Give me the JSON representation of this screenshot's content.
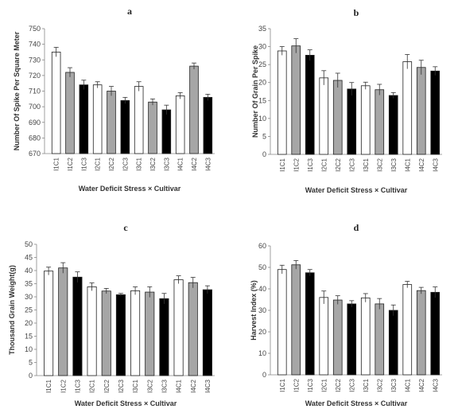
{
  "colors": {
    "C1": "#ffffff",
    "C2": "#a6a6a6",
    "C3": "#000000"
  },
  "chart_data": [
    {
      "type": "bar",
      "panel": "a",
      "title": "a",
      "xlabel": "Water Deficit Stress × Cultivar",
      "ylabel": "Number Of Spike Per Square Meter",
      "ylim": [
        670,
        750
      ],
      "yticks": [
        670,
        680,
        690,
        700,
        710,
        720,
        730,
        740,
        750
      ],
      "categories": [
        "I1C1",
        "I1C2",
        "I1C3",
        "I2C1",
        "I2C2",
        "I2C3",
        "I3C1",
        "I3C2",
        "I3C3",
        "I4C1",
        "I4C2",
        "I4C3"
      ],
      "values": [
        735,
        722,
        714,
        714,
        710,
        704,
        713,
        703,
        698,
        707,
        726,
        706
      ],
      "errors": [
        3,
        3,
        3,
        2,
        3,
        2,
        3,
        2,
        3,
        2,
        2,
        2
      ]
    },
    {
      "type": "bar",
      "panel": "b",
      "title": "b",
      "xlabel": "Water Deficit Stress × Cultivar",
      "ylabel": "Number Of Grain Per Spike",
      "ylim": [
        0,
        35
      ],
      "yticks": [
        0,
        5,
        10,
        15,
        20,
        25,
        30,
        35
      ],
      "categories": [
        "I1C1",
        "I1C2",
        "I1C3",
        "I2C1",
        "I2C2",
        "I2C3",
        "I3C1",
        "I3C2",
        "I3C3",
        "I4C1",
        "I4C2",
        "I4C3"
      ],
      "values": [
        28.8,
        30.2,
        27.6,
        21.3,
        20.6,
        18.2,
        19.1,
        18.0,
        16.4,
        25.8,
        24.2,
        23.2
      ],
      "errors": [
        1.2,
        2.0,
        1.5,
        2.0,
        2.0,
        1.8,
        1.0,
        1.5,
        0.8,
        2.0,
        2.0,
        1.2
      ]
    },
    {
      "type": "bar",
      "panel": "c",
      "title": "c",
      "xlabel": "Water Deficit Stress × Cultivar",
      "ylabel": "Thousand Grain Weight(g)",
      "ylim": [
        0,
        50
      ],
      "yticks": [
        0,
        5,
        10,
        15,
        20,
        25,
        30,
        35,
        40,
        45,
        50
      ],
      "categories": [
        "I1C1",
        "I1C2",
        "I1C3",
        "I2C1",
        "I2C2",
        "I2C3",
        "I3C1",
        "I3C2",
        "I3C3",
        "I4C1",
        "I4C2",
        "I4C3"
      ],
      "values": [
        39.8,
        41.0,
        37.5,
        33.8,
        32.2,
        30.8,
        32.3,
        31.8,
        29.3,
        36.5,
        35.4,
        32.7
      ],
      "errors": [
        1.5,
        2.0,
        2.0,
        1.5,
        1.0,
        0.5,
        1.5,
        2.0,
        2.0,
        1.5,
        2.0,
        1.5
      ]
    },
    {
      "type": "bar",
      "panel": "d",
      "title": "d",
      "xlabel": "Water Deficit Stress × Cultivar",
      "ylabel": "Harvest Index (%)",
      "ylim": [
        0,
        60
      ],
      "yticks": [
        0,
        10,
        20,
        30,
        40,
        50,
        60
      ],
      "categories": [
        "I1C1",
        "I1C2",
        "I1C3",
        "I2C1",
        "I2C2",
        "I2C3",
        "I3C1",
        "I3C2",
        "I3C3",
        "I4C1",
        "I4C2",
        "I4C3"
      ],
      "values": [
        49.0,
        51.2,
        47.5,
        36.0,
        34.8,
        33.0,
        35.8,
        33.0,
        30.0,
        42.0,
        39.2,
        38.4
      ],
      "errors": [
        2.0,
        2.0,
        1.5,
        3.0,
        2.0,
        1.5,
        2.0,
        2.5,
        2.5,
        1.5,
        1.5,
        2.5
      ]
    }
  ]
}
